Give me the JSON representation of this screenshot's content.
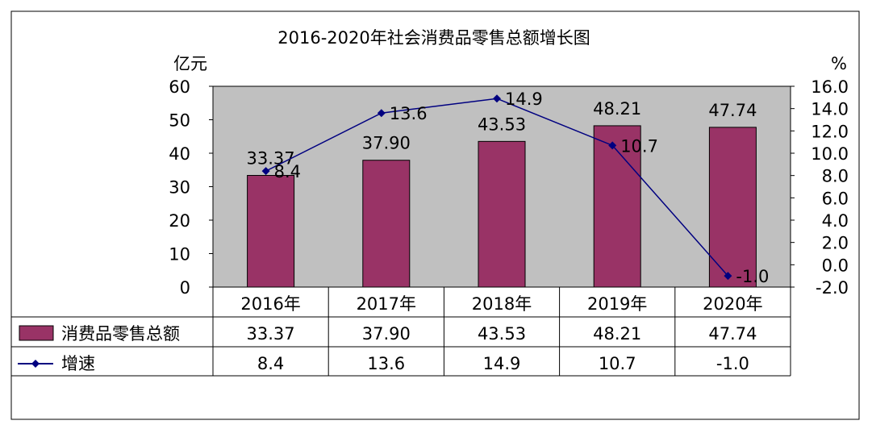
{
  "chart_data": {
    "type": "bar+line",
    "title": "2016-2020年社会消费品零售总额增长图",
    "left_axis_unit": "亿元",
    "right_axis_unit": "%",
    "categories": [
      "2016年",
      "2017年",
      "2018年",
      "2019年",
      "2020年"
    ],
    "left_ylim": [
      0,
      60
    ],
    "left_ticks": [
      "0",
      "10",
      "20",
      "30",
      "40",
      "50",
      "60"
    ],
    "right_ylim": [
      -2,
      16
    ],
    "right_ticks": [
      "-2.0",
      "0.0",
      "2.0",
      "4.0",
      "6.0",
      "8.0",
      "10.0",
      "12.0",
      "14.0",
      "16.0"
    ],
    "series": [
      {
        "name": "消费品零售总额",
        "kind": "bar",
        "axis": "left",
        "color": "#993366",
        "values": [
          33.37,
          37.9,
          43.53,
          48.21,
          47.74
        ],
        "labels": [
          "33.37",
          "37.90",
          "43.53",
          "48.21",
          "47.74"
        ]
      },
      {
        "name": "增速",
        "kind": "line",
        "axis": "right",
        "color": "#000080",
        "values": [
          8.4,
          13.6,
          14.9,
          10.7,
          -1.0
        ],
        "labels": [
          "8.4",
          "13.6",
          "14.9",
          "10.7",
          "-1.0"
        ]
      }
    ],
    "plot_background": "#c0c0c0",
    "grid": false,
    "legend": "data-table below chart"
  }
}
